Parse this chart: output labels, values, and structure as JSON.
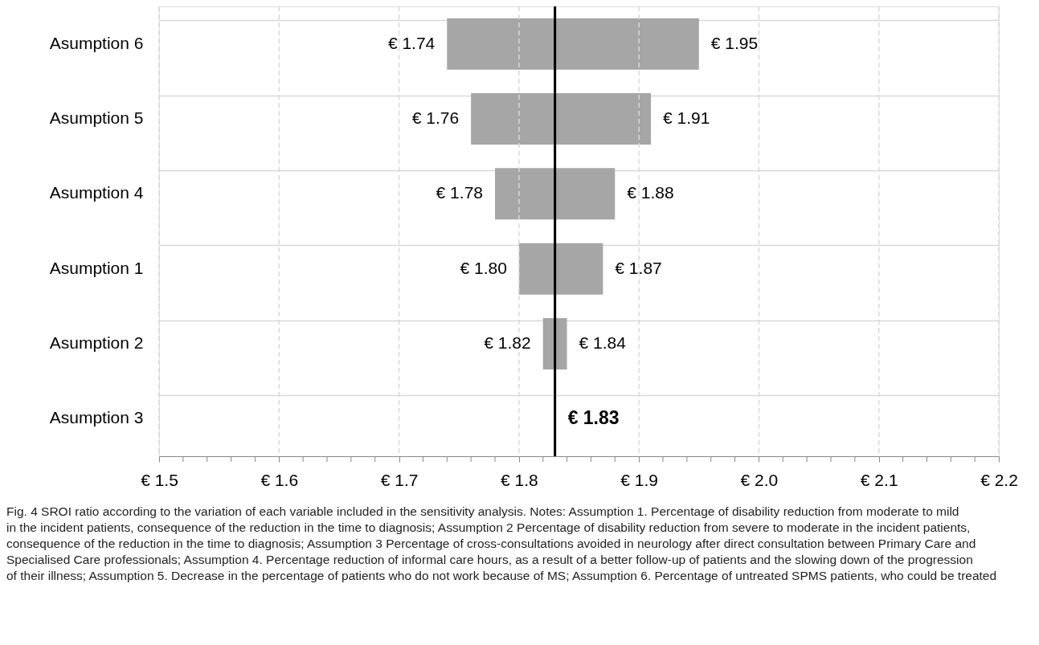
{
  "chart_data": {
    "type": "bar",
    "orientation": "horizontal",
    "categories": [
      "Asumption 6",
      "Asumption 5",
      "Asumption 4",
      "Asumption 1",
      "Asumption 2",
      "Asumption 3"
    ],
    "base": [
      1.74,
      1.76,
      1.78,
      1.8,
      1.82,
      null
    ],
    "values": [
      0.21,
      0.15,
      0.1,
      0.07,
      0.02,
      null
    ],
    "colors": [
      "#a6a6a6",
      "#a6a6a6",
      "#a6a6a6",
      "#a6a6a6",
      "#a6a6a6",
      "#a6a6a6"
    ],
    "xlim": [
      1.5,
      2.2
    ],
    "xticks": [
      {
        "value": 1.5,
        "label": "€ 1.5"
      },
      {
        "value": 1.52,
        "label": null
      },
      {
        "value": 1.54,
        "label": null
      },
      {
        "value": 1.56,
        "label": null
      },
      {
        "value": 1.58,
        "label": null
      },
      {
        "value": 1.6,
        "label": "€ 1.6"
      },
      {
        "value": 1.62,
        "label": null
      },
      {
        "value": 1.64,
        "label": null
      },
      {
        "value": 1.66,
        "label": null
      },
      {
        "value": 1.68,
        "label": null
      },
      {
        "value": 1.7,
        "label": "€ 1.7"
      },
      {
        "value": 1.72,
        "label": null
      },
      {
        "value": 1.74,
        "label": null
      },
      {
        "value": 1.76,
        "label": null
      },
      {
        "value": 1.78,
        "label": null
      },
      {
        "value": 1.8,
        "label": "€ 1.8"
      },
      {
        "value": 1.82,
        "label": null
      },
      {
        "value": 1.84,
        "label": null
      },
      {
        "value": 1.86,
        "label": null
      },
      {
        "value": 1.88,
        "label": null
      },
      {
        "value": 1.9,
        "label": "€ 1.9"
      },
      {
        "value": 1.92,
        "label": null
      },
      {
        "value": 1.94,
        "label": null
      },
      {
        "value": 1.96,
        "label": null
      },
      {
        "value": 1.98,
        "label": null
      },
      {
        "value": 2.0,
        "label": "€ 2.0"
      },
      {
        "value": 2.02,
        "label": null
      },
      {
        "value": 2.04,
        "label": null
      },
      {
        "value": 2.06,
        "label": null
      },
      {
        "value": 2.08,
        "label": null
      },
      {
        "value": 2.1,
        "label": "€ 2.1"
      },
      {
        "value": 2.12,
        "label": null
      },
      {
        "value": 2.14,
        "label": null
      },
      {
        "value": 2.16,
        "label": null
      },
      {
        "value": 2.18,
        "label": null
      },
      {
        "value": 2.2,
        "label": "€ 2.2"
      }
    ],
    "grid": true,
    "ref_lines": [
      {
        "axis": "x",
        "value": 1.83,
        "label": "€ 1.83",
        "color": "#000000"
      }
    ],
    "annotations": [
      {
        "text": "€ 1.74",
        "x": 1.74,
        "y": "Asumption 6"
      },
      {
        "text": "€ 1.95",
        "x": 1.95,
        "y": "Asumption 6"
      },
      {
        "text": "€ 1.76",
        "x": 1.76,
        "y": "Asumption 5"
      },
      {
        "text": "€ 1.91",
        "x": 1.91,
        "y": "Asumption 5"
      },
      {
        "text": "€ 1.78",
        "x": 1.78,
        "y": "Asumption 4"
      },
      {
        "text": "€ 1.88",
        "x": 1.88,
        "y": "Asumption 4"
      },
      {
        "text": "€ 1.80",
        "x": 1.8,
        "y": "Asumption 1"
      },
      {
        "text": "€ 1.87",
        "x": 1.87,
        "y": "Asumption 1"
      },
      {
        "text": "€ 1.82",
        "x": 1.82,
        "y": "Asumption 2"
      },
      {
        "text": "€ 1.84",
        "x": 1.84,
        "y": "Asumption 2"
      },
      "Fig. 4 SROI ratio according to the variation of each variable included in the sensitivity analysis. Notes: Assumption 1. Percentage of disability reduction from moderate to mild in the incident patients, consequence of the reduction in the time to diagnosis; Assumption 2 Percentage of disability reduction from severe to moderate in the incident patients, consequence of the reduction in the time to diagnosis; Assumption 3 Percentage of cross-consultations avoided in neurology after direct consultation between Primary Care and Specialised Care professionals; Assumption 4. Percentage reduction of informal care hours, as a result of a better follow-up of patients and the slowing down of the progression of their illness; Assumption 5. Decrease in the percentage of patients who do not work because of MS; Assumption 6. Percentage of untreated SPMS patients, who could be treated"
    ]
  }
}
